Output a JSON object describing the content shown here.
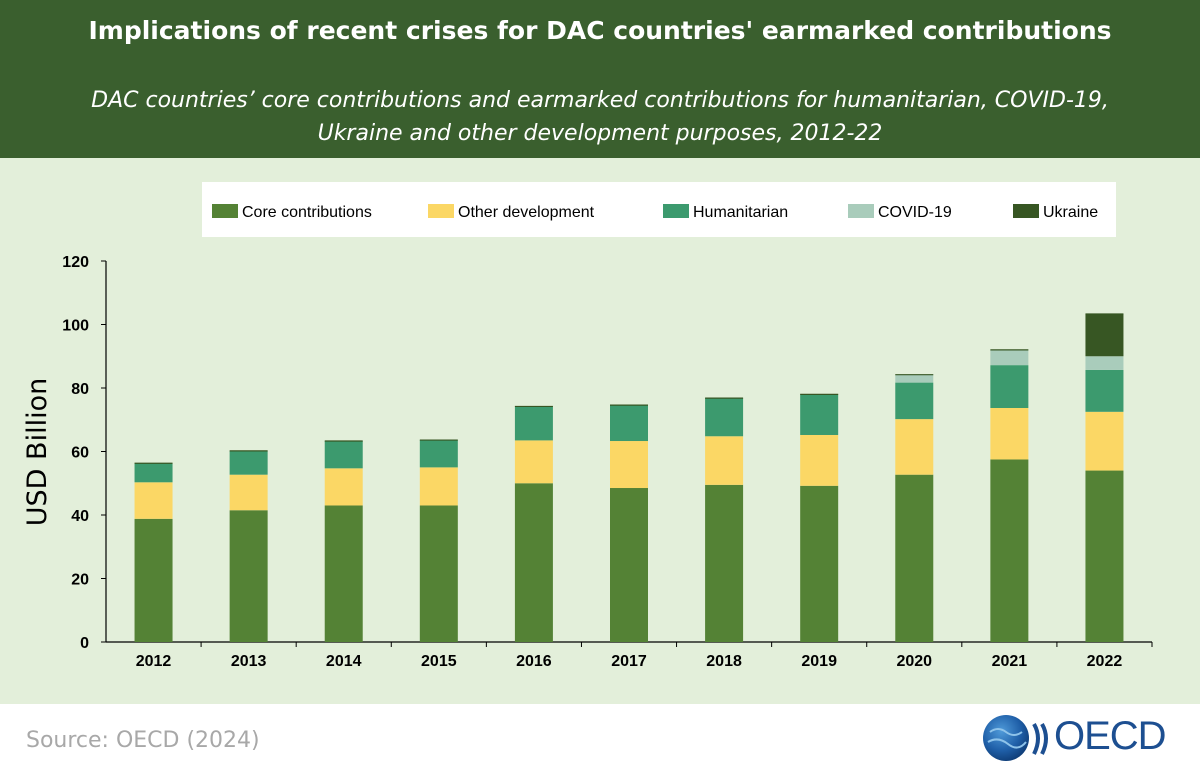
{
  "header": {
    "title": "Implications of recent crises for DAC countries' earmarked contributions",
    "subtitle_line1": "DAC countries’ core contributions and earmarked contributions for humanitarian, COVID-19,",
    "subtitle_line2": "Ukraine and other development purposes, 2012-22"
  },
  "footer": {
    "source": "Source: OECD (2024)",
    "logo_text": "OECD"
  },
  "chart_data": {
    "type": "bar",
    "stacked": true,
    "categories": [
      "2012",
      "2013",
      "2014",
      "2015",
      "2016",
      "2017",
      "2018",
      "2019",
      "2020",
      "2021",
      "2022"
    ],
    "ylabel": "USD Billion",
    "xlabel": "",
    "ylim": [
      0,
      120
    ],
    "yticks": [
      0,
      20,
      40,
      60,
      80,
      100,
      120
    ],
    "grid": false,
    "legend_position": "top",
    "series": [
      {
        "name": "Core contributions",
        "color": "#548235",
        "values": [
          38.8,
          41.5,
          43.0,
          43.0,
          50.0,
          48.5,
          49.5,
          49.2,
          52.7,
          57.5,
          54.0
        ]
      },
      {
        "name": "Other development",
        "color": "#fbd765",
        "values": [
          11.5,
          11.2,
          11.7,
          12.0,
          13.5,
          14.8,
          15.3,
          16.0,
          17.5,
          16.2,
          18.5
        ]
      },
      {
        "name": "Humanitarian",
        "color": "#3c9a6e",
        "values": [
          6.0,
          7.5,
          8.6,
          8.6,
          10.7,
          11.3,
          12.0,
          12.8,
          11.5,
          13.5,
          13.2
        ]
      },
      {
        "name": "COVID-19",
        "color": "#a9ccbb",
        "values": [
          0,
          0,
          0,
          0,
          0,
          0,
          0,
          0,
          2.5,
          4.8,
          4.3
        ]
      },
      {
        "name": "Ukraine",
        "color": "#375623",
        "values": [
          0,
          0,
          0,
          0,
          0,
          0,
          0,
          0,
          0,
          0,
          13.3
        ]
      }
    ]
  }
}
